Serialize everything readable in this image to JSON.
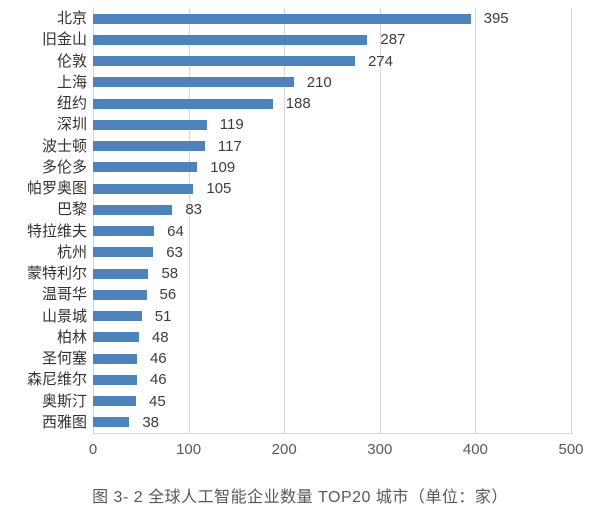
{
  "chart_data": {
    "type": "bar",
    "orientation": "horizontal",
    "title": "",
    "caption": "图 3- 2 全球人工智能企业数量 TOP20 城市（单位：家）",
    "categories": [
      "北京",
      "旧金山",
      "伦敦",
      "上海",
      "纽约",
      "深圳",
      "波士顿",
      "多伦多",
      "帕罗奥图",
      "巴黎",
      "特拉维夫",
      "杭州",
      "蒙特利尔",
      "温哥华",
      "山景城",
      "柏林",
      "圣何塞",
      "森尼维尔",
      "奥斯汀",
      "西雅图"
    ],
    "values": [
      395,
      287,
      274,
      210,
      188,
      119,
      117,
      109,
      105,
      83,
      64,
      63,
      58,
      56,
      51,
      48,
      46,
      46,
      45,
      38
    ],
    "xlabel": "",
    "ylabel": "",
    "xlim": [
      0,
      500
    ],
    "x_ticks": [
      0,
      100,
      200,
      300,
      400,
      500
    ],
    "grid": "vertical-only",
    "legend": "none",
    "bar_color": "#4e82ba",
    "grid_color": "#d7d7d7",
    "value_label_color": "#3d3d3d",
    "tick_label_color": "#595959",
    "caption_color": "#595959"
  }
}
